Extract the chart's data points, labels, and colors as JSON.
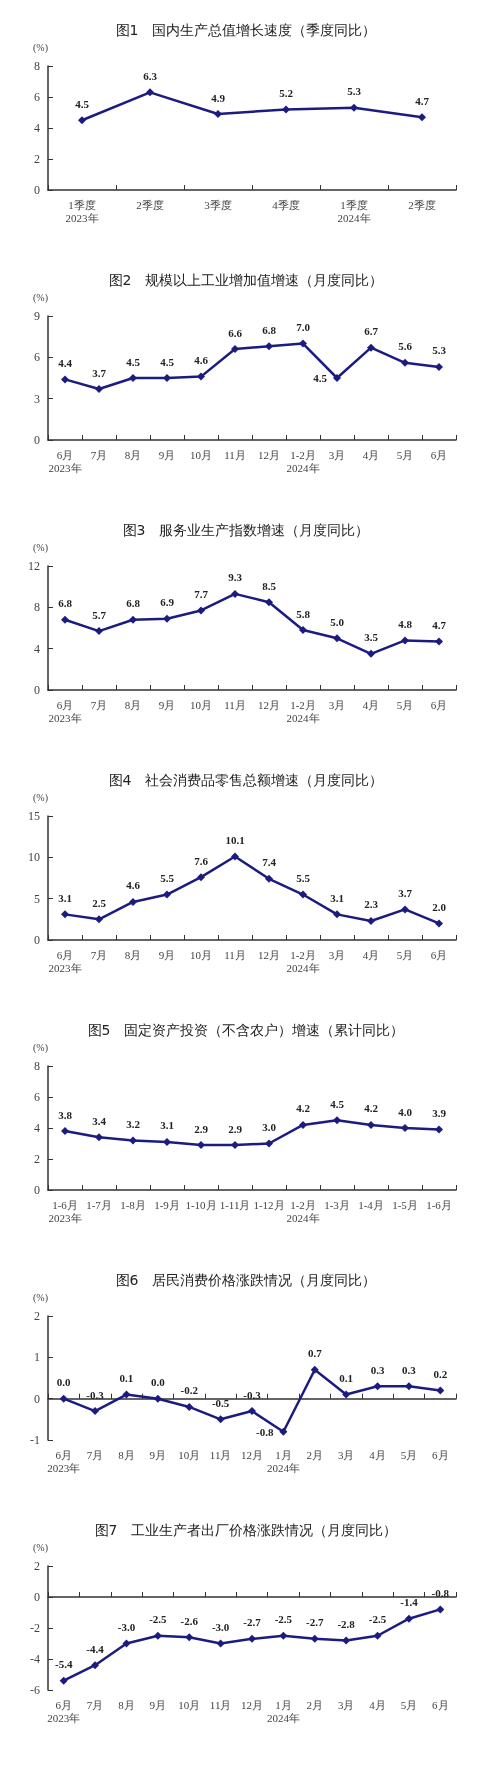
{
  "chart_data": [
    {
      "type": "line",
      "title": "图1　国内生产总值增长速度（季度同比）",
      "ylabel": "(%)",
      "categories": [
        "1季度\n2023年",
        "2季度",
        "3季度",
        "4季度",
        "1季度\n2024年",
        "2季度"
      ],
      "values": [
        4.5,
        6.3,
        4.9,
        5.2,
        5.3,
        4.7
      ],
      "value_labels": [
        "4.5",
        "6.3",
        "4.9",
        "5.2",
        "5.3",
        "4.7"
      ],
      "color": "#1c1c80",
      "ylim": [
        0,
        8
      ],
      "yticks": [
        0,
        2,
        4,
        6,
        8
      ],
      "marker": "diamond"
    },
    {
      "type": "line",
      "title": "图2　规模以上工业增加值增速（月度同比）",
      "ylabel": "(%)",
      "categories": [
        "6月\n2023年",
        "7月",
        "8月",
        "9月",
        "10月",
        "11月",
        "12月",
        "1-2月\n2024年",
        "3月",
        "4月",
        "5月",
        "6月"
      ],
      "values": [
        4.4,
        3.7,
        4.5,
        4.5,
        4.6,
        6.6,
        6.8,
        7.0,
        4.5,
        6.7,
        5.6,
        5.3
      ],
      "value_labels": [
        "4.4",
        "3.7",
        "4.5",
        "4.5",
        "4.6",
        "6.6",
        "6.8",
        "7.0",
        "4.5",
        "6.7",
        "5.6",
        "5.3"
      ],
      "color": "#1c1c80",
      "ylim": [
        0,
        9
      ],
      "yticks": [
        0,
        3,
        6,
        9
      ],
      "marker": "diamond"
    },
    {
      "type": "line",
      "title": "图3　服务业生产指数增速（月度同比）",
      "ylabel": "(%)",
      "categories": [
        "6月\n2023年",
        "7月",
        "8月",
        "9月",
        "10月",
        "11月",
        "12月",
        "1-2月\n2024年",
        "3月",
        "4月",
        "5月",
        "6月"
      ],
      "values": [
        6.8,
        5.7,
        6.8,
        6.9,
        7.7,
        9.3,
        8.5,
        5.8,
        5.0,
        3.5,
        4.8,
        4.7
      ],
      "value_labels": [
        "6.8",
        "5.7",
        "6.8",
        "6.9",
        "7.7",
        "9.3",
        "8.5",
        "5.8",
        "5.0",
        "3.5",
        "4.8",
        "4.7"
      ],
      "color": "#1c1c80",
      "ylim": [
        0,
        12
      ],
      "yticks": [
        0,
        4,
        8,
        12
      ],
      "marker": "diamond"
    },
    {
      "type": "line",
      "title": "图4　社会消费品零售总额增速（月度同比）",
      "ylabel": "(%)",
      "categories": [
        "6月\n2023年",
        "7月",
        "8月",
        "9月",
        "10月",
        "11月",
        "12月",
        "1-2月\n2024年",
        "3月",
        "4月",
        "5月",
        "6月"
      ],
      "values": [
        3.1,
        2.5,
        4.6,
        5.5,
        7.6,
        10.1,
        7.4,
        5.5,
        3.1,
        2.3,
        3.7,
        2.0
      ],
      "value_labels": [
        "3.1",
        "2.5",
        "4.6",
        "5.5",
        "7.6",
        "10.1",
        "7.4",
        "5.5",
        "3.1",
        "2.3",
        "3.7",
        "2.0"
      ],
      "color": "#1c1c80",
      "ylim": [
        0,
        15
      ],
      "yticks": [
        0,
        5,
        10,
        15
      ],
      "marker": "diamond"
    },
    {
      "type": "line",
      "title": "图5　固定资产投资（不含农户）增速（累计同比）",
      "ylabel": "(%)",
      "categories": [
        "1-6月\n2023年",
        "1-7月",
        "1-8月",
        "1-9月",
        "1-10月",
        "1-11月",
        "1-12月",
        "1-2月\n2024年",
        "1-3月",
        "1-4月",
        "1-5月",
        "1-6月"
      ],
      "values": [
        3.8,
        3.4,
        3.2,
        3.1,
        2.9,
        2.9,
        3.0,
        4.2,
        4.5,
        4.2,
        4.0,
        3.9
      ],
      "value_labels": [
        "3.8",
        "3.4",
        "3.2",
        "3.1",
        "2.9",
        "2.9",
        "3.0",
        "4.2",
        "4.5",
        "4.2",
        "4.0",
        "3.9"
      ],
      "color": "#1c1c80",
      "ylim": [
        0,
        8
      ],
      "yticks": [
        0,
        2,
        4,
        6,
        8
      ],
      "marker": "diamond"
    },
    {
      "type": "line",
      "title": "图6　居民消费价格涨跌情况（月度同比）",
      "ylabel": "(%)",
      "categories": [
        "6月\n2023年",
        "7月",
        "8月",
        "9月",
        "10月",
        "11月",
        "12月",
        "1月\n2024年",
        "2月",
        "3月",
        "4月",
        "5月",
        "6月"
      ],
      "values": [
        0.0,
        -0.3,
        0.1,
        0.0,
        -0.2,
        -0.5,
        -0.3,
        -0.8,
        0.7,
        0.1,
        0.3,
        0.3,
        0.2
      ],
      "value_labels": [
        "0.0",
        "-0.3",
        "0.1",
        "0.0",
        "-0.2",
        "-0.5",
        "-0.3",
        "-0.8",
        "0.7",
        "0.1",
        "0.3",
        "0.3",
        "0.2"
      ],
      "color": "#1c1c80",
      "ylim": [
        -1,
        2
      ],
      "yticks": [
        -1,
        0,
        1,
        2
      ],
      "marker": "diamond"
    },
    {
      "type": "line",
      "title": "图7　工业生产者出厂价格涨跌情况（月度同比）",
      "ylabel": "(%)",
      "categories": [
        "6月\n2023年",
        "7月",
        "8月",
        "9月",
        "10月",
        "11月",
        "12月",
        "1月\n2024年",
        "2月",
        "3月",
        "4月",
        "5月",
        "6月"
      ],
      "values": [
        -5.4,
        -4.4,
        -3.0,
        -2.5,
        -2.6,
        -3.0,
        -2.7,
        -2.5,
        -2.7,
        -2.8,
        -2.5,
        -1.4,
        -0.8
      ],
      "value_labels": [
        "-5.4",
        "-4.4",
        "-3.0",
        "-2.5",
        "-2.6",
        "-3.0",
        "-2.7",
        "-2.5",
        "-2.7",
        "-2.8",
        "-2.5",
        "-1.4",
        "-0.8"
      ],
      "color": "#1c1c80",
      "ylim": [
        -6,
        2
      ],
      "yticks": [
        -6,
        -4,
        -2,
        0,
        2
      ],
      "marker": "diamond"
    }
  ]
}
